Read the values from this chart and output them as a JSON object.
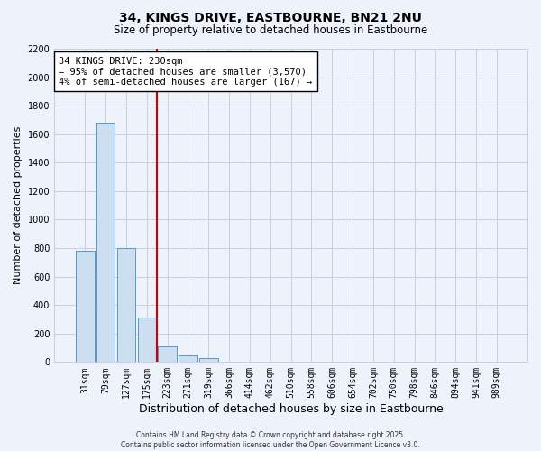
{
  "title": "34, KINGS DRIVE, EASTBOURNE, BN21 2NU",
  "subtitle": "Size of property relative to detached houses in Eastbourne",
  "xlabel": "Distribution of detached houses by size in Eastbourne",
  "ylabel": "Number of detached properties",
  "categories": [
    "31sqm",
    "79sqm",
    "127sqm",
    "175sqm",
    "223sqm",
    "271sqm",
    "319sqm",
    "366sqm",
    "414sqm",
    "462sqm",
    "510sqm",
    "558sqm",
    "606sqm",
    "654sqm",
    "702sqm",
    "750sqm",
    "798sqm",
    "846sqm",
    "894sqm",
    "941sqm",
    "989sqm"
  ],
  "values": [
    780,
    1680,
    800,
    310,
    110,
    45,
    25,
    0,
    0,
    0,
    0,
    0,
    0,
    0,
    0,
    0,
    0,
    0,
    0,
    0,
    0
  ],
  "bar_color": "#ccdff0",
  "bar_edge_color": "#5599cc",
  "vline_color": "#cc0000",
  "vline_index": 3.5,
  "annotation_text": "34 KINGS DRIVE: 230sqm\n← 95% of detached houses are smaller (3,570)\n4% of semi-detached houses are larger (167) →",
  "ylim": [
    0,
    2200
  ],
  "yticks": [
    0,
    200,
    400,
    600,
    800,
    1000,
    1200,
    1400,
    1600,
    1800,
    2000,
    2200
  ],
  "background_color": "#eef2fa",
  "grid_color": "#c8cedf",
  "title_fontsize": 10,
  "subtitle_fontsize": 8.5,
  "xlabel_fontsize": 9,
  "ylabel_fontsize": 8,
  "tick_fontsize": 7,
  "footer_text": "Contains HM Land Registry data © Crown copyright and database right 2025.\nContains public sector information licensed under the Open Government Licence v3.0.",
  "annotation_box_facecolor": "#ffffff",
  "annotation_box_edgecolor": "#000000",
  "annotation_fontsize": 7.5
}
